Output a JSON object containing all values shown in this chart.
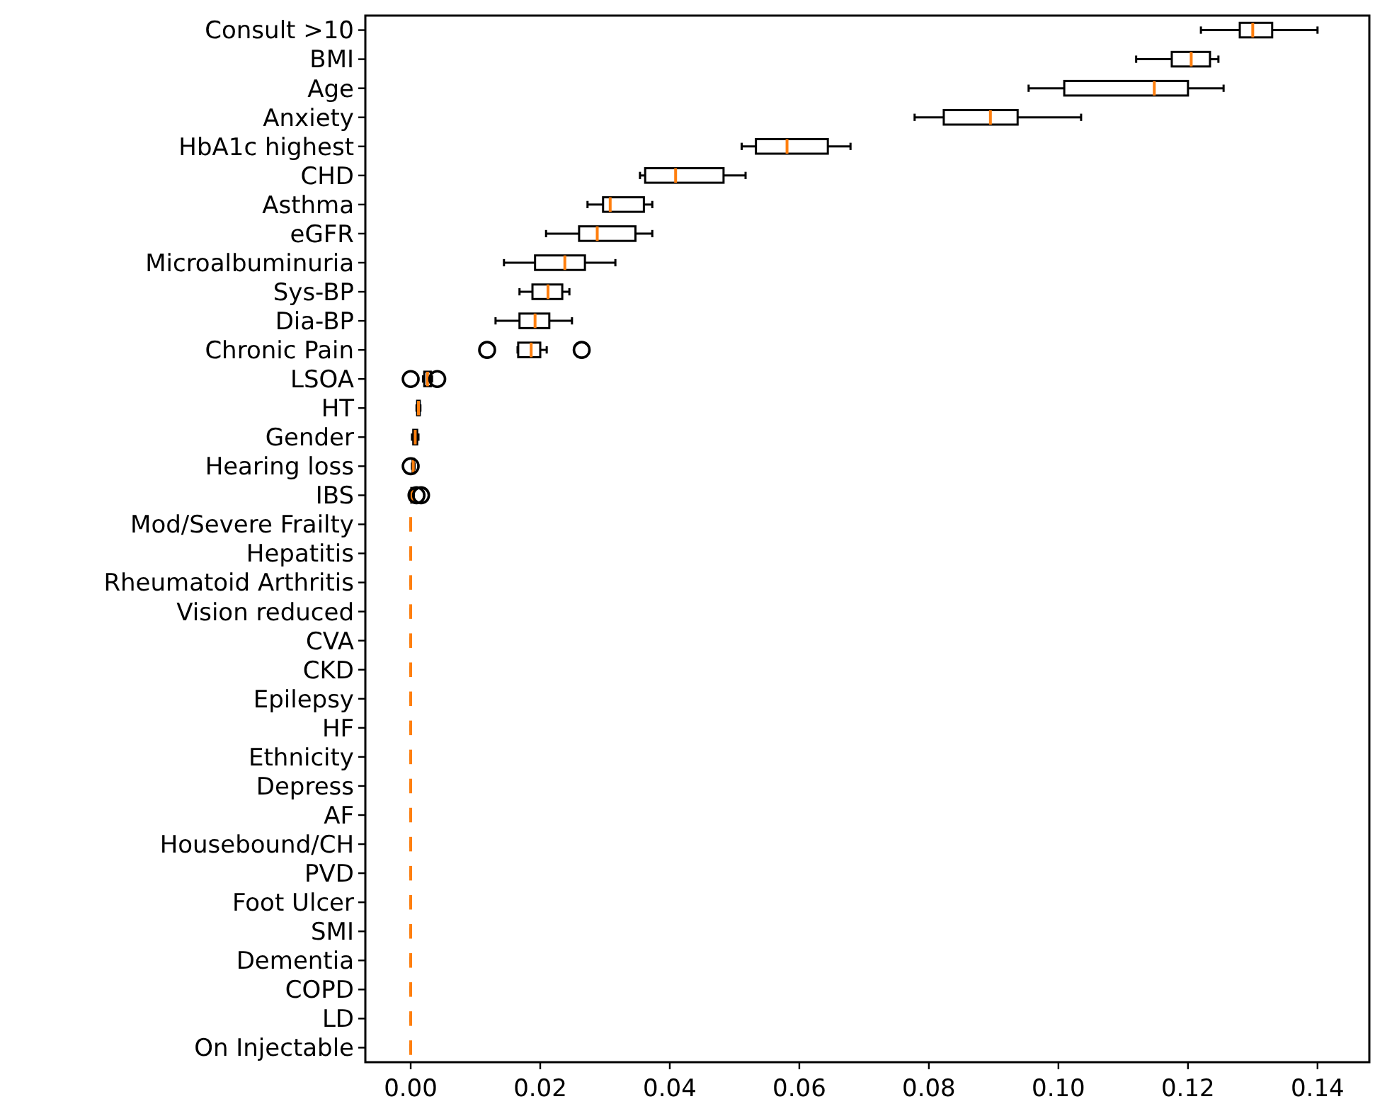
{
  "chart_data": {
    "type": "box",
    "orientation": "horizontal",
    "categories": [
      "Consult >10",
      "BMI",
      "Age",
      "Anxiety",
      "HbA1c highest",
      "CHD",
      "Asthma",
      "eGFR",
      "Microalbuminuria",
      "Sys-BP",
      "Dia-BP",
      "Chronic Pain",
      "LSOA",
      "HT",
      "Gender",
      "Hearing loss",
      "IBS",
      "Mod/Severe Frailty",
      "Hepatitis",
      "Rheumatoid Arthritis",
      "Vision reduced",
      "CVA",
      "CKD",
      "Epilepsy",
      "HF",
      "Ethnicity",
      "Depress",
      "AF",
      "Housebound/CH",
      "PVD",
      "Foot Ulcer",
      "SMI",
      "Dementia",
      "COPD",
      "LD",
      "On Injectable"
    ],
    "boxes": [
      {
        "low": 0.122,
        "q1": 0.128,
        "median": 0.13,
        "q3": 0.133,
        "high": 0.14
      },
      {
        "low": 0.112,
        "q1": 0.1175,
        "median": 0.1205,
        "q3": 0.1234,
        "high": 0.1247
      },
      {
        "low": 0.0954,
        "q1": 0.1009,
        "median": 0.1148,
        "q3": 0.12,
        "high": 0.1255
      },
      {
        "low": 0.0778,
        "q1": 0.0823,
        "median": 0.0895,
        "q3": 0.0937,
        "high": 0.1035
      },
      {
        "low": 0.0511,
        "q1": 0.0533,
        "median": 0.0581,
        "q3": 0.0644,
        "high": 0.0679
      },
      {
        "low": 0.0354,
        "q1": 0.0362,
        "median": 0.0409,
        "q3": 0.0483,
        "high": 0.0517
      },
      {
        "low": 0.0273,
        "q1": 0.0297,
        "median": 0.0308,
        "q3": 0.036,
        "high": 0.0373
      },
      {
        "low": 0.0209,
        "q1": 0.026,
        "median": 0.0288,
        "q3": 0.0347,
        "high": 0.0373
      },
      {
        "low": 0.0144,
        "q1": 0.0192,
        "median": 0.0238,
        "q3": 0.0269,
        "high": 0.0316
      },
      {
        "low": 0.0168,
        "q1": 0.0188,
        "median": 0.0212,
        "q3": 0.0234,
        "high": 0.0245
      },
      {
        "low": 0.0131,
        "q1": 0.0168,
        "median": 0.0192,
        "q3": 0.0214,
        "high": 0.0249
      },
      {
        "low": 0.0165,
        "q1": 0.0166,
        "median": 0.0186,
        "q3": 0.02,
        "high": 0.021,
        "outliers": [
          0.0118,
          0.0264
        ]
      },
      {
        "low": 0.0019,
        "q1": 0.0021,
        "median": 0.0026,
        "q3": 0.0031,
        "high": 0.0033,
        "outliers": [
          0.0,
          0.0041
        ]
      },
      {
        "low": 0.0009,
        "q1": 0.001,
        "median": 0.0012,
        "q3": 0.0014,
        "high": 0.0015
      },
      {
        "low": 0.0002,
        "q1": 0.0004,
        "median": 0.0007,
        "q3": 0.001,
        "high": 0.0012
      },
      {
        "low": 0.0002,
        "q1": 0.0003,
        "median": 0.0004,
        "q3": 0.0005,
        "high": 0.0006,
        "outliers": [
          0.0
        ]
      },
      {
        "low": 0.0,
        "q1": 0.0001,
        "median": 0.0002,
        "q3": 0.0004,
        "high": 0.0005,
        "outliers": [
          0.0009,
          0.0016
        ]
      },
      {
        "low": 0,
        "q1": 0,
        "median": 0,
        "q3": 0,
        "high": 0
      },
      {
        "low": 0,
        "q1": 0,
        "median": 0,
        "q3": 0,
        "high": 0
      },
      {
        "low": 0,
        "q1": 0,
        "median": 0,
        "q3": 0,
        "high": 0
      },
      {
        "low": 0,
        "q1": 0,
        "median": 0,
        "q3": 0,
        "high": 0
      },
      {
        "low": 0,
        "q1": 0,
        "median": 0,
        "q3": 0,
        "high": 0
      },
      {
        "low": 0,
        "q1": 0,
        "median": 0,
        "q3": 0,
        "high": 0
      },
      {
        "low": 0,
        "q1": 0,
        "median": 0,
        "q3": 0,
        "high": 0
      },
      {
        "low": 0,
        "q1": 0,
        "median": 0,
        "q3": 0,
        "high": 0
      },
      {
        "low": 0,
        "q1": 0,
        "median": 0,
        "q3": 0,
        "high": 0
      },
      {
        "low": 0,
        "q1": 0,
        "median": 0,
        "q3": 0,
        "high": 0
      },
      {
        "low": 0,
        "q1": 0,
        "median": 0,
        "q3": 0,
        "high": 0
      },
      {
        "low": 0,
        "q1": 0,
        "median": 0,
        "q3": 0,
        "high": 0
      },
      {
        "low": 0,
        "q1": 0,
        "median": 0,
        "q3": 0,
        "high": 0
      },
      {
        "low": 0,
        "q1": 0,
        "median": 0,
        "q3": 0,
        "high": 0
      },
      {
        "low": 0,
        "q1": 0,
        "median": 0,
        "q3": 0,
        "high": 0
      },
      {
        "low": 0,
        "q1": 0,
        "median": 0,
        "q3": 0,
        "high": 0
      },
      {
        "low": 0,
        "q1": 0,
        "median": 0,
        "q3": 0,
        "high": 0
      },
      {
        "low": 0,
        "q1": 0,
        "median": 0,
        "q3": 0,
        "high": 0
      },
      {
        "low": 0,
        "q1": 0,
        "median": 0,
        "q3": 0,
        "high": 0
      }
    ],
    "xlim": [
      -0.007,
      0.148
    ],
    "xticks": [
      {
        "value": 0,
        "label": "0.00"
      },
      {
        "value": 0.02,
        "label": "0.02"
      },
      {
        "value": 0.04,
        "label": "0.04"
      },
      {
        "value": 0.06,
        "label": "0.06"
      },
      {
        "value": 0.08,
        "label": "0.08"
      },
      {
        "value": 0.1,
        "label": "0.10"
      },
      {
        "value": 0.12,
        "label": "0.12"
      },
      {
        "value": 0.14,
        "label": "0.14"
      }
    ],
    "color": "#000000"
  }
}
